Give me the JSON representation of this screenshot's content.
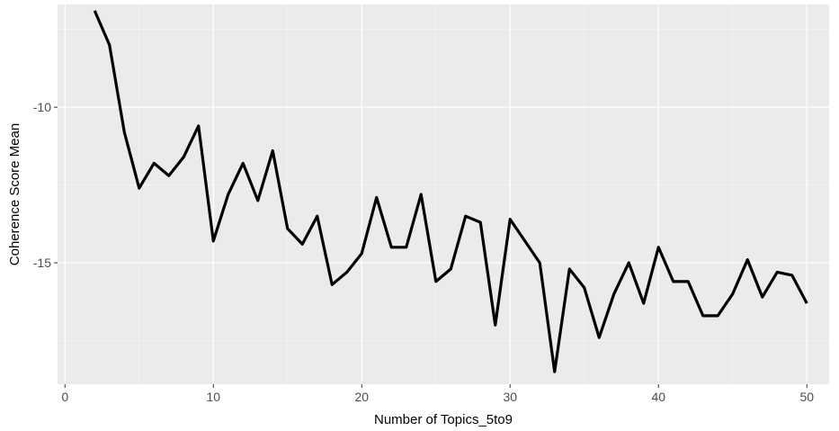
{
  "chart_data": {
    "type": "line",
    "title": "",
    "xlabel": "Number of Topics_5to9",
    "ylabel": "Coherence Score Mean",
    "xlim": [
      -0.5,
      51.5
    ],
    "ylim": [
      -18.9,
      -6.7
    ],
    "x_ticks": [
      0,
      10,
      20,
      30,
      40,
      50
    ],
    "y_ticks": [
      -10,
      -15
    ],
    "x_tick_labels": [
      "0",
      "10",
      "20",
      "30",
      "40",
      "50"
    ],
    "y_tick_labels": [
      "-10",
      "-15"
    ],
    "grid": true,
    "legend": "none",
    "series": [
      {
        "x": [
          2,
          3,
          4,
          5,
          6,
          7,
          8,
          9,
          10,
          11,
          12,
          13,
          14,
          15,
          16,
          17,
          18,
          19,
          20,
          21,
          22,
          23,
          24,
          25,
          26,
          27,
          28,
          29,
          30,
          31,
          32,
          33,
          34,
          35,
          36,
          37,
          38,
          39,
          40,
          41,
          42,
          43,
          44,
          45,
          46,
          47,
          48,
          49,
          50
        ],
        "y": [
          -6.9,
          -8.0,
          -10.8,
          -12.6,
          -11.8,
          -12.2,
          -11.6,
          -10.6,
          -14.3,
          -12.8,
          -11.8,
          -13.0,
          -11.4,
          -13.9,
          -14.4,
          -13.5,
          -15.7,
          -15.3,
          -14.7,
          -12.9,
          -14.5,
          -14.5,
          -12.8,
          -15.6,
          -15.2,
          -13.5,
          -13.7,
          -17.0,
          -13.6,
          -14.3,
          -15.0,
          -18.5,
          -15.2,
          -15.8,
          -17.4,
          -16.0,
          -15.0,
          -16.3,
          -14.5,
          -15.6,
          -15.6,
          -16.7,
          -16.7,
          -16.0,
          -14.9,
          -16.1,
          -15.3,
          -15.4,
          -16.3
        ]
      }
    ],
    "colors": {
      "panel_background": "#ebebeb",
      "major_grid": "#ffffff",
      "minor_grid": "#f5f5f5",
      "line": "#000000",
      "tick_text": "#4d4d4d",
      "tick_mark": "#333333"
    }
  }
}
